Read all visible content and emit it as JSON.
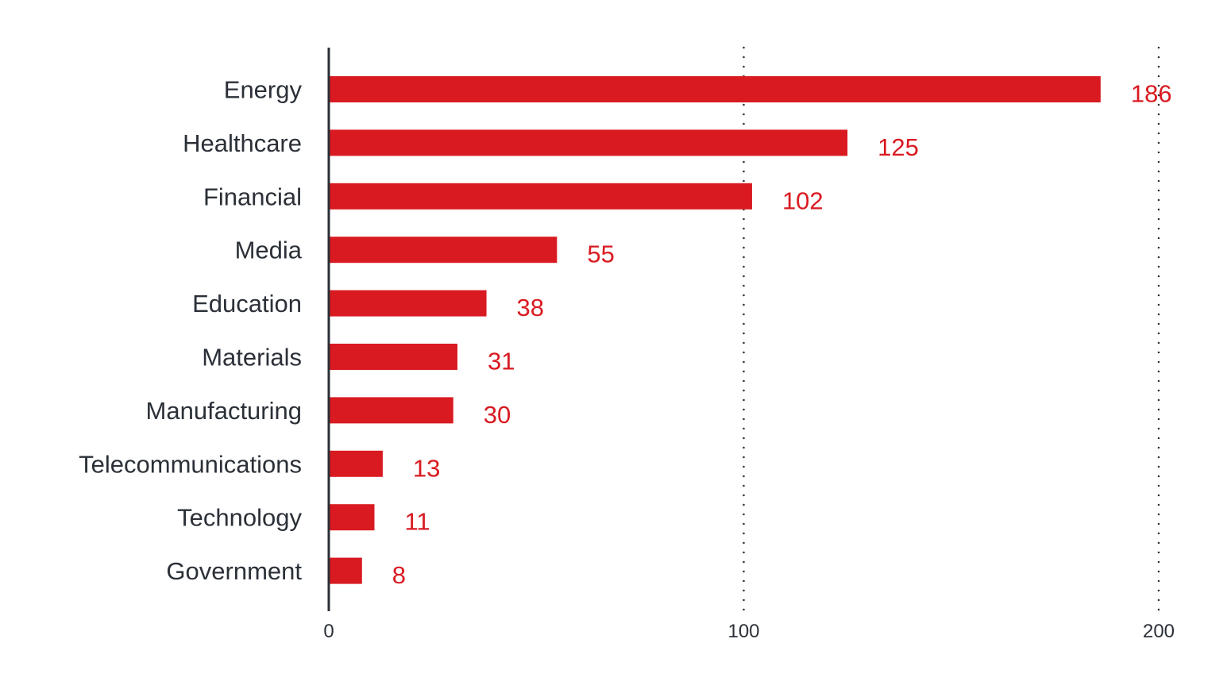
{
  "chart_data": {
    "type": "bar",
    "orientation": "horizontal",
    "title": "",
    "xlabel": "",
    "ylabel": "",
    "categories": [
      "Energy",
      "Healthcare",
      "Financial",
      "Media",
      "Education",
      "Materials",
      "Manufacturing",
      "Telecommunications",
      "Technology",
      "Government"
    ],
    "values": [
      186,
      125,
      102,
      55,
      38,
      31,
      30,
      13,
      11,
      8
    ],
    "value_labels": [
      "186",
      "125",
      "102",
      "55",
      "38",
      "31",
      "30",
      "13",
      "11",
      "8"
    ],
    "xlim": [
      0,
      200
    ],
    "xticks": [
      0,
      100,
      200
    ],
    "xtick_labels": [
      "0",
      "100",
      "200"
    ],
    "grid": "vertical dotted at 100 and 200",
    "bar_color": "#d91a21",
    "text_color": "#2b3038"
  }
}
